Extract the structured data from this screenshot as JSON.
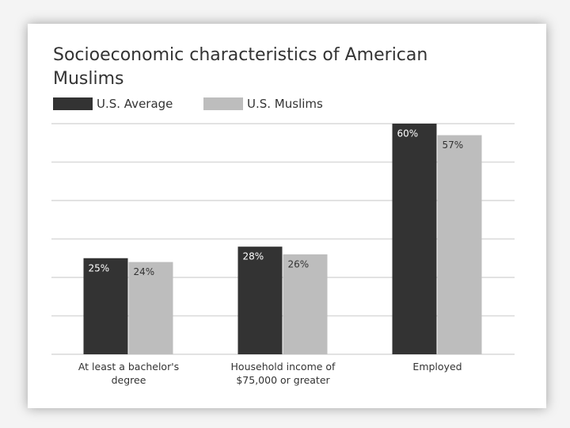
{
  "chart_data": {
    "type": "bar",
    "title": "Socioeconomic characteristics of American Muslims",
    "categories": [
      "At least a bachelor's degree",
      "Household income of $75,000 or greater",
      "Employed"
    ],
    "series": [
      {
        "name": "U.S. Average",
        "color": "#333333",
        "values": [
          25,
          28,
          60
        ],
        "value_labels": [
          "25%",
          "28%",
          "60%"
        ]
      },
      {
        "name": "U.S. Muslims",
        "color": "#bdbdbd",
        "values": [
          24,
          26,
          57
        ],
        "value_labels": [
          "24%",
          "26%",
          "57%"
        ]
      }
    ],
    "ylim": [
      0,
      60
    ],
    "yticks": [
      0,
      10,
      20,
      30,
      40,
      50,
      60
    ],
    "grid": true,
    "legend": "top-left"
  }
}
